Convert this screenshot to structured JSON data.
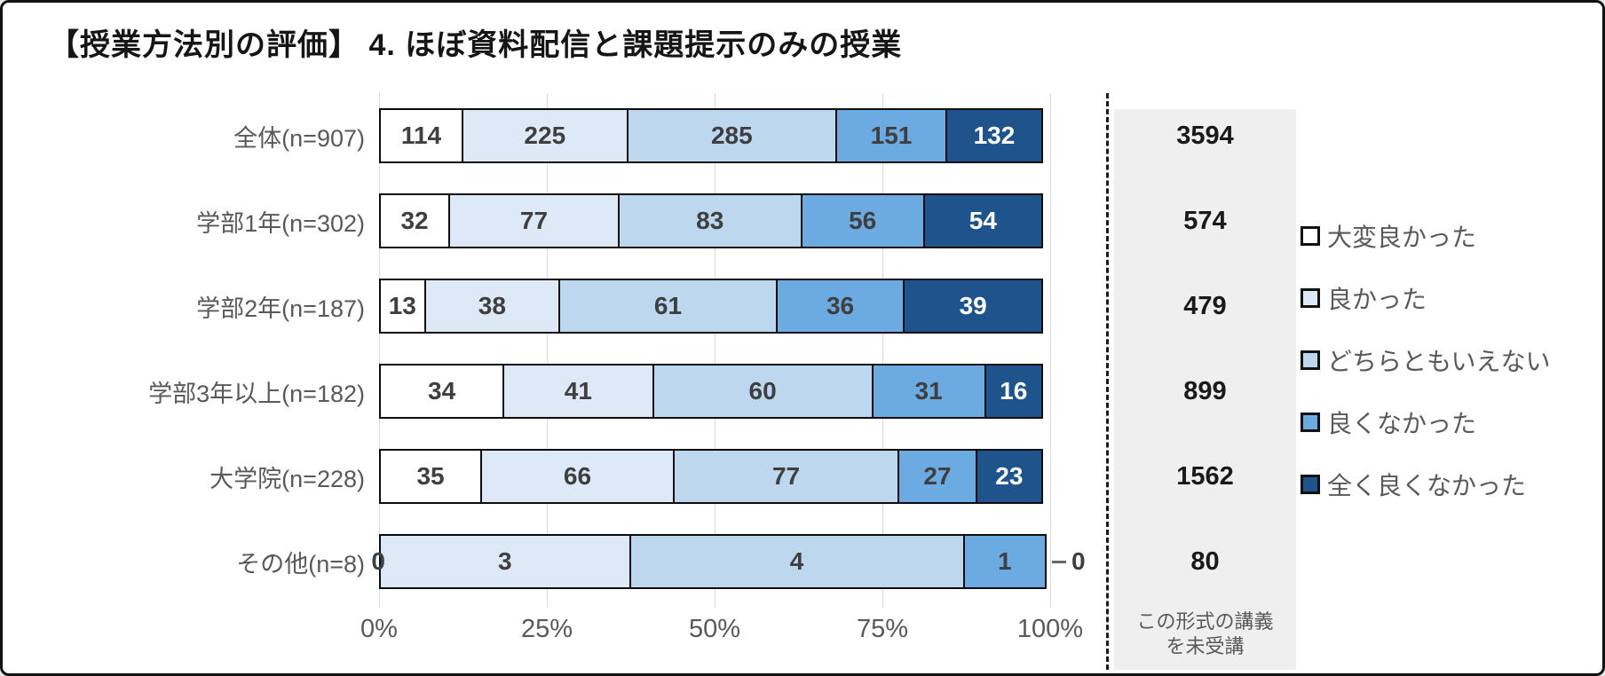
{
  "title": "【授業方法別の評価】 4. ほぼ資料配信と課題提示のみの授業",
  "chart_data": {
    "type": "bar",
    "orientation": "horizontal",
    "stacked": true,
    "normalized_to_percent": true,
    "title": "【授業方法別の評価】 4. ほぼ資料配信と課題提示のみの授業",
    "categories": [
      "全体(n=907)",
      "学部1年(n=302)",
      "学部2年(n=187)",
      "学部3年以上(n=182)",
      "大学院(n=228)",
      "その他(n=8)"
    ],
    "series": [
      {
        "name": "大変良かった",
        "color": "#ffffff",
        "values": [
          114,
          32,
          13,
          34,
          35,
          0
        ]
      },
      {
        "name": "良かった",
        "color": "#dde9f6",
        "values": [
          225,
          77,
          38,
          41,
          66,
          3
        ]
      },
      {
        "name": "どちらともいえない",
        "color": "#bdd7ee",
        "values": [
          285,
          83,
          61,
          60,
          77,
          4
        ]
      },
      {
        "name": "良くなかった",
        "color": "#6babe1",
        "values": [
          151,
          56,
          36,
          31,
          27,
          1
        ]
      },
      {
        "name": "全く良くなかった",
        "color": "#1f538c",
        "values": [
          132,
          54,
          39,
          16,
          23,
          0
        ]
      }
    ],
    "x_ticks": [
      "0%",
      "25%",
      "50%",
      "75%",
      "100%"
    ],
    "xlim": [
      0,
      100
    ],
    "grid": true,
    "legend_position": "right",
    "not_attended_column": {
      "note_lines": [
        "この形式の講義",
        "を未受講"
      ],
      "values": [
        3594,
        574,
        479,
        899,
        1562,
        80
      ]
    }
  },
  "colors": {
    "grid": "#d9d9d9",
    "panel_bg": "#f0efef",
    "axis_text": "#595959",
    "bar_border": "#0d0d0d",
    "value_text": "#3f3f3f",
    "value_text_on_dark": "#ffffff"
  }
}
